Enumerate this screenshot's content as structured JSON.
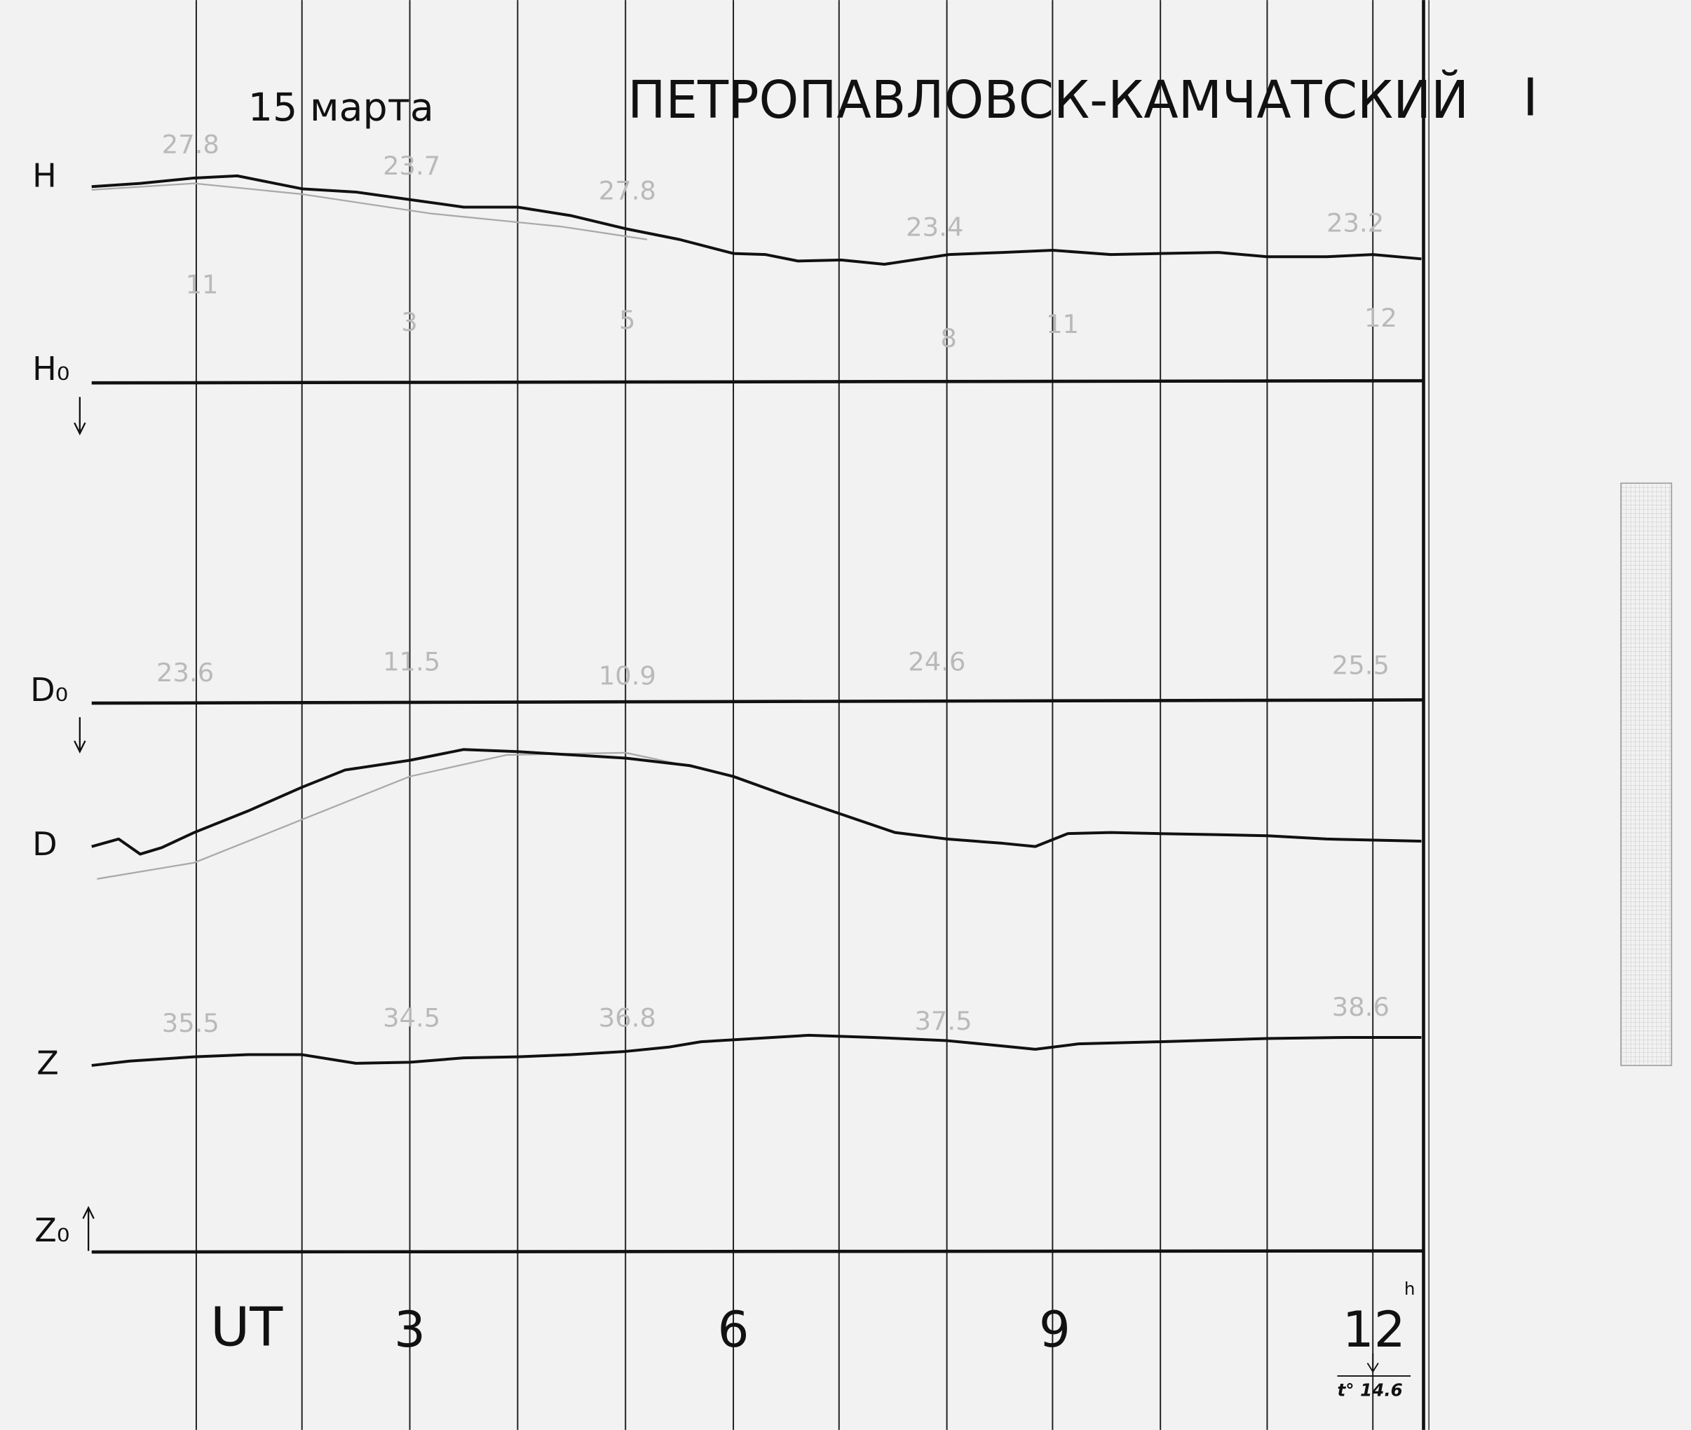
{
  "header": {
    "date": "15 марта",
    "title": "ПЕТРОПАВЛОВСК-КАМЧАТСКИЙ",
    "instrument": "I"
  },
  "trace_labels": {
    "H": "H",
    "H0": "H₀",
    "D0": "D₀",
    "D": "D",
    "Z": "Z",
    "Z0": "Z₀"
  },
  "time_axis": {
    "label": "UT",
    "ticks": [
      "3",
      "6",
      "9",
      "12"
    ],
    "unit": "h",
    "temperature": "t° 14.6"
  },
  "annotations": {
    "h_marks": [
      "27.8",
      "23.7",
      "27.8",
      "23.4",
      "23.2"
    ],
    "h_base": [
      "11",
      "3",
      "5",
      "8",
      "11",
      "12"
    ],
    "d_marks": [
      "23.6",
      "11.5",
      "10.9",
      "24.6",
      "25.5"
    ],
    "z_marks": [
      "35.5",
      "34.5",
      "36.8",
      "37.5",
      "38.6"
    ]
  }
}
